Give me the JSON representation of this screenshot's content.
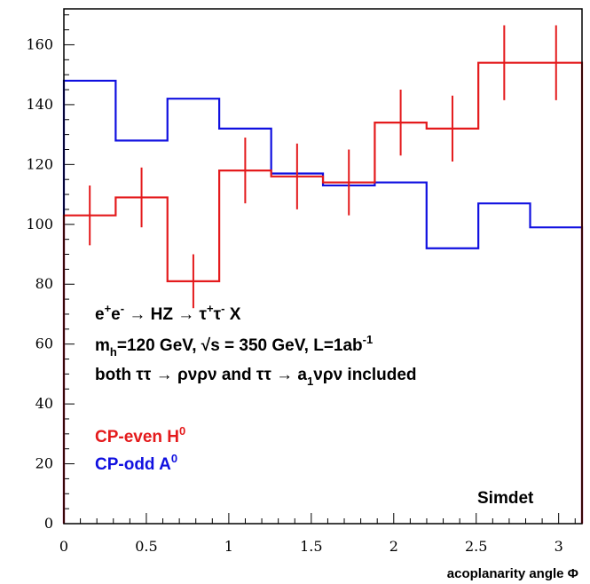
{
  "chart_data": {
    "type": "histogram",
    "xlabel": "acoplanarity angle Φ",
    "ylabel": "",
    "xlim": [
      0,
      3.14159
    ],
    "ylim": [
      0,
      172
    ],
    "x_ticks": [
      0,
      0.5,
      1,
      1.5,
      2,
      2.5,
      3
    ],
    "x_tick_labels": [
      "0",
      "0.5",
      "1",
      "1.5",
      "2",
      "2.5",
      "3"
    ],
    "y_ticks": [
      0,
      20,
      40,
      60,
      80,
      100,
      120,
      140,
      160
    ],
    "y_tick_labels": [
      "0",
      "20",
      "40",
      "60",
      "80",
      "100",
      "120",
      "140",
      "160"
    ],
    "bin_edges": [
      0,
      0.314,
      0.628,
      0.942,
      1.257,
      1.571,
      1.885,
      2.199,
      2.513,
      2.827,
      3.14159
    ],
    "series": [
      {
        "name": "CP-even H0",
        "color": "#e41a1c",
        "values": [
          103,
          109,
          81,
          118,
          116,
          114,
          134,
          132,
          154,
          154
        ],
        "errors": [
          10,
          10,
          9,
          11,
          11,
          11,
          11,
          11,
          12.5,
          12.5
        ]
      },
      {
        "name": "CP-odd A0",
        "color": "#1010e0",
        "values": [
          148,
          128,
          142,
          132,
          117,
          113,
          114,
          92,
          107,
          99
        ]
      }
    ],
    "annotations": {
      "line1": {
        "a": "e",
        "b": "+",
        "c": "e",
        "d": "-",
        "e": " → HZ → τ",
        "f": "+",
        "g": "τ",
        "h": "-",
        "i": " X"
      },
      "line2": {
        "a": "m",
        "b": "h",
        "c": "=120 GeV, √s = 350 GeV, L=1ab",
        "d": "-1"
      },
      "line3": {
        "a": "both ττ → ρνρν and ττ → a",
        "b": "1",
        "c": "νρν included"
      },
      "legend_even": {
        "a": "CP-even H",
        "b": "0"
      },
      "legend_odd": {
        "a": "CP-odd A",
        "b": "0"
      },
      "simdet": "Simdet"
    }
  }
}
